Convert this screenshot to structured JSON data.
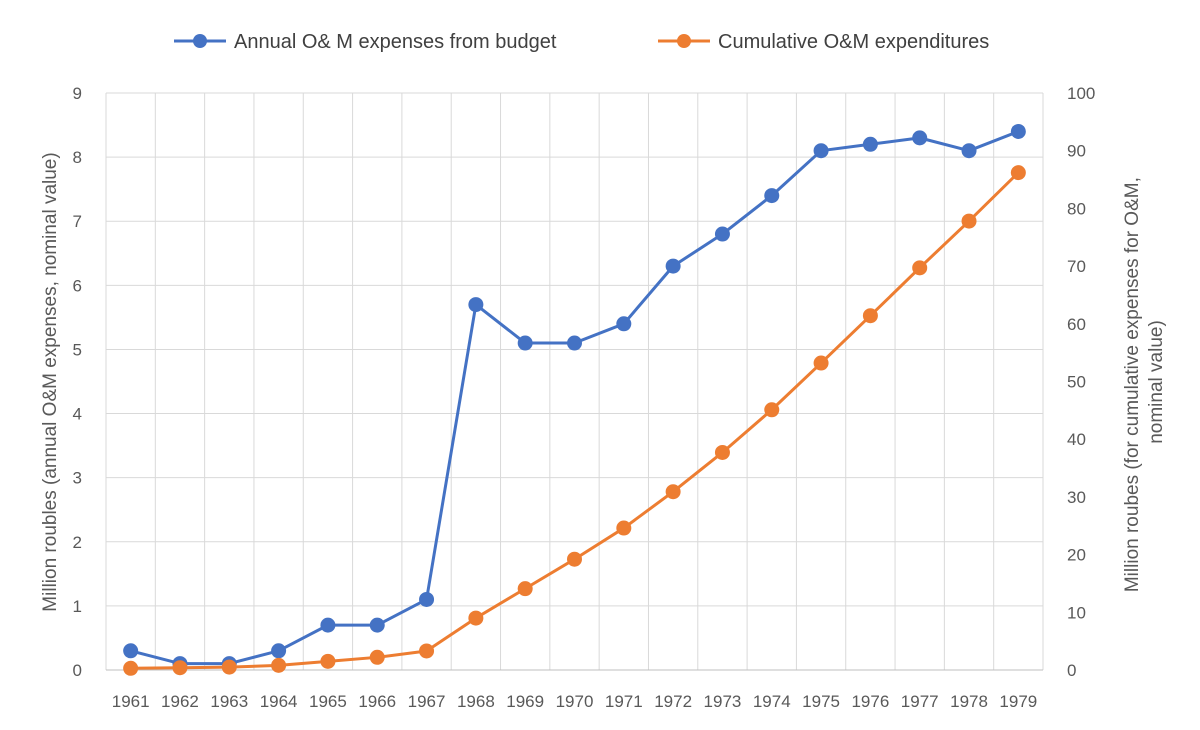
{
  "chart_data": {
    "type": "line",
    "categories": [
      "1961",
      "1962",
      "1963",
      "1964",
      "1965",
      "1966",
      "1967",
      "1968",
      "1969",
      "1970",
      "1971",
      "1972",
      "1973",
      "1974",
      "1975",
      "1976",
      "1977",
      "1978",
      "1979"
    ],
    "series": [
      {
        "name": "Annual O& M expenses from budget",
        "axis": "left",
        "color": "#4472c4",
        "values": [
          0.3,
          0.1,
          0.1,
          0.3,
          0.7,
          0.7,
          1.1,
          5.7,
          5.1,
          5.1,
          5.4,
          6.3,
          6.8,
          7.4,
          8.1,
          8.2,
          8.3,
          8.1,
          8.4
        ]
      },
      {
        "name": "Cumulative O&M expenditures",
        "axis": "right",
        "color": "#ed7d31",
        "values": [
          0.3,
          0.4,
          0.5,
          0.8,
          1.5,
          2.2,
          3.3,
          9.0,
          14.1,
          19.2,
          24.6,
          30.9,
          37.7,
          45.1,
          53.2,
          61.4,
          69.7,
          77.8,
          86.2
        ]
      }
    ],
    "y_left": {
      "label": "Million roubles (annual  O&M expenses, nominal value)",
      "range": [
        0,
        9
      ],
      "ticks": [
        "0",
        "1",
        "2",
        "3",
        "4",
        "5",
        "6",
        "7",
        "8",
        "9"
      ]
    },
    "y_right": {
      "label_lines": [
        "Million roubes (for cumulative expenses for O&M,",
        "nominal value)"
      ],
      "range": [
        0,
        100
      ],
      "ticks": [
        "0",
        "10",
        "20",
        "30",
        "40",
        "50",
        "60",
        "70",
        "80",
        "90",
        "100"
      ]
    },
    "grid": true,
    "legend_position": "top-center"
  }
}
